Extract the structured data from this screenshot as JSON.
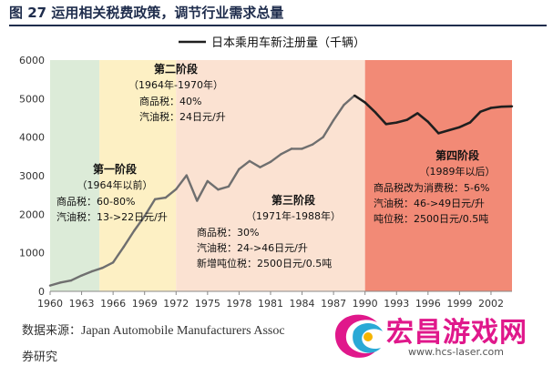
{
  "figure_title": "图 27 运用相关税费政策，调节行业需求总量",
  "source": {
    "label": "数据来源：",
    "text": "Japan Automobile Manufacturers Assoc",
    "continuation": "券研究"
  },
  "watermark": {
    "title": "宏昌游戏网",
    "url": "www.hcs-laser.com"
  },
  "colors": {
    "stage1": "#dcebd8",
    "stage2": "#fdf0c4",
    "stage3": "#fbe2d2",
    "stage4": "#f28a76",
    "line": "#6f6f6f",
    "line_stage4": "#1f1f1f",
    "title": "#1f2d4d"
  },
  "chart_data": {
    "type": "line",
    "legend": "日本乘用车新注册量（千辆）",
    "legend_position": "top-right",
    "xlim": [
      1960,
      2004
    ],
    "ylim": [
      0,
      6000
    ],
    "yticks": [
      0,
      1000,
      2000,
      3000,
      4000,
      5000,
      6000
    ],
    "xticks": [
      "1960",
      "1963",
      "1966",
      "1969",
      "1972",
      "1975",
      "1978",
      "1981",
      "1984",
      "1987",
      "1990",
      "1993",
      "1996",
      "1999",
      "2002"
    ],
    "stages": [
      {
        "name": "第一阶段",
        "period": "（1964年以前）",
        "x_start": 1960,
        "x_end": 1964.7,
        "lines": [
          "商品税：60-80%",
          "汽油税：13->22日元/升"
        ]
      },
      {
        "name": "第二阶段",
        "period": "（1964年-1970年）",
        "x_start": 1964.7,
        "x_end": 1972,
        "lines": [
          "商品税：40%",
          "汽油税：24日元/升"
        ]
      },
      {
        "name": "第三阶段",
        "period": "（1971年-1988年）",
        "x_start": 1972,
        "x_end": 1990,
        "lines": [
          "商品税：30%",
          "汽油税：24->46日元/升",
          "新增吨位税：2500日元/0.5吨"
        ]
      },
      {
        "name": "第四阶段",
        "period": "（1989年以后）",
        "x_start": 1990,
        "x_end": 2004,
        "lines": [
          "商品税改为消费税：5-6%",
          "汽油税：46->49日元/升",
          "吨位税：2500日元/0.5吨"
        ]
      }
    ],
    "series": [
      {
        "name": "日本乘用车新注册量（千辆）",
        "x": [
          1960,
          1961,
          1962,
          1963,
          1964,
          1965,
          1966,
          1967,
          1968,
          1969,
          1970,
          1971,
          1972,
          1973,
          1974,
          1975,
          1976,
          1977,
          1978,
          1979,
          1980,
          1981,
          1982,
          1983,
          1984,
          1985,
          1986,
          1987,
          1988,
          1989,
          1990,
          1991,
          1992,
          1993,
          1994,
          1995,
          1996,
          1997,
          1998,
          1999,
          2000,
          2001,
          2002,
          2003,
          2004
        ],
        "values": [
          150,
          230,
          280,
          410,
          520,
          610,
          750,
          1150,
          1570,
          1950,
          2390,
          2430,
          2650,
          3010,
          2350,
          2860,
          2640,
          2720,
          3170,
          3380,
          3220,
          3360,
          3560,
          3700,
          3700,
          3810,
          4000,
          4440,
          4840,
          5080,
          4900,
          4640,
          4340,
          4380,
          4450,
          4620,
          4400,
          4100,
          4180,
          4260,
          4380,
          4660,
          4760,
          4790,
          4800
        ]
      }
    ]
  }
}
